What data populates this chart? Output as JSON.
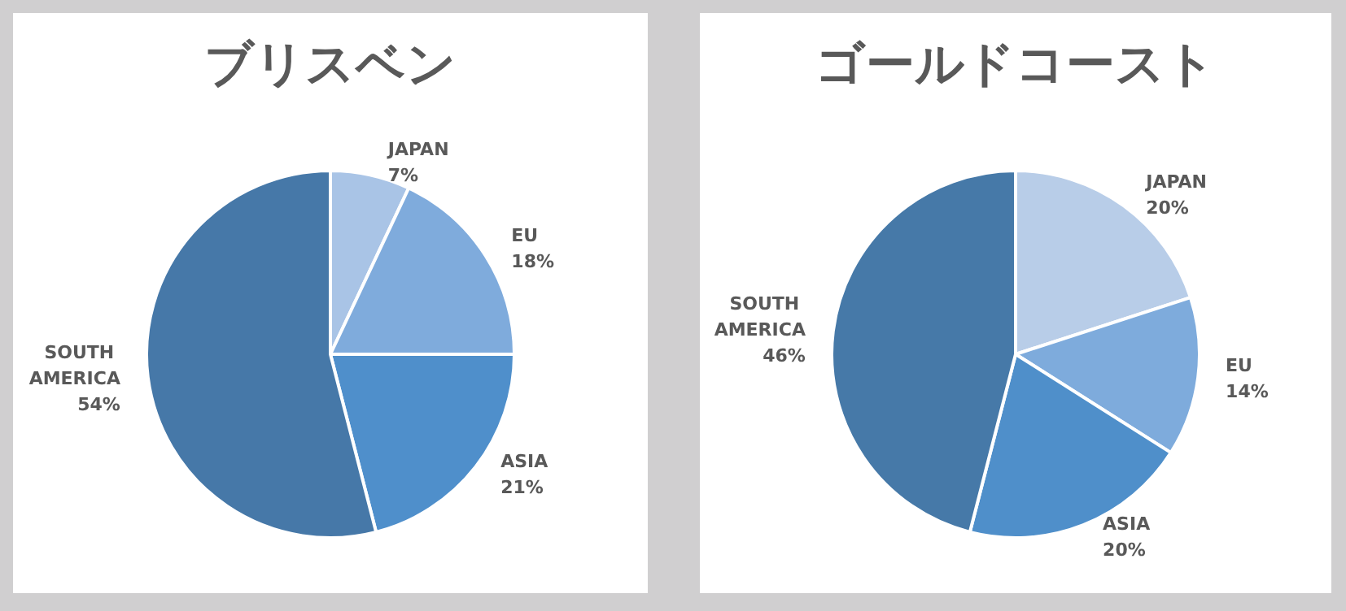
{
  "chart_data": [
    {
      "type": "pie",
      "title": "ブリスベン",
      "categories": [
        "JAPAN",
        "EU",
        "ASIA",
        "SOUTH AMERICA"
      ],
      "values": [
        7,
        18,
        21,
        54
      ],
      "value_labels": [
        "7%",
        "18%",
        "21%",
        "54%"
      ],
      "colors": [
        "#a9c4e6",
        "#7fabdc",
        "#4f8fcb",
        "#4678a8"
      ]
    },
    {
      "type": "pie",
      "title": "ゴールドコースト",
      "categories": [
        "JAPAN",
        "EU",
        "ASIA",
        "SOUTH AMERICA"
      ],
      "values": [
        20,
        14,
        20,
        46
      ],
      "value_labels": [
        "20%",
        "14%",
        "20%",
        "46%"
      ],
      "colors": [
        "#b8cde8",
        "#7eabdc",
        "#4f8fca",
        "#4679a8"
      ]
    }
  ]
}
